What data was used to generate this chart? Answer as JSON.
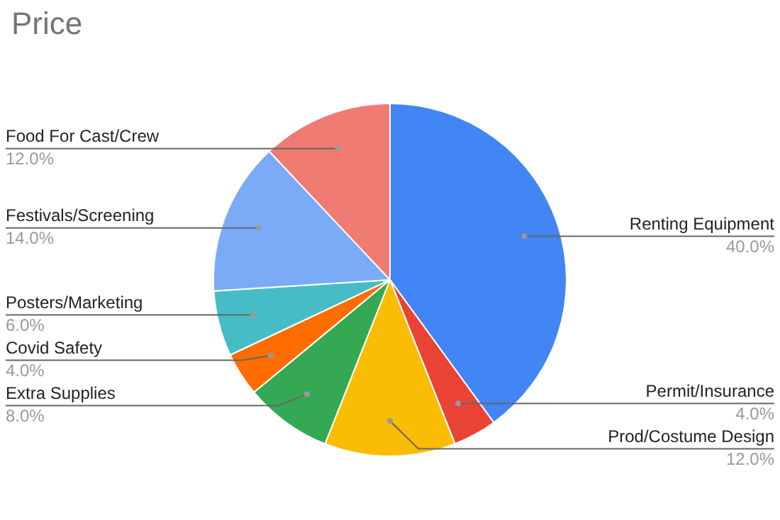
{
  "chart_data": {
    "type": "pie",
    "title": "Price",
    "categories": [
      "Renting Equipment",
      "Permit/Insurance",
      "Prod/Costume Design",
      "Extra Supplies",
      "Covid Safety",
      "Posters/Marketing",
      "Festivals/Screening",
      "Food For Cast/Crew"
    ],
    "values": [
      40,
      4,
      12,
      8,
      4,
      6,
      14,
      12
    ],
    "colors": [
      "#4285f4",
      "#ea4335",
      "#fbbc04",
      "#34a853",
      "#ff6d01",
      "#46bdc6",
      "#7baaf7",
      "#f07b72"
    ],
    "value_labels": [
      "40.0%",
      "4.0%",
      "12.0%",
      "8.0%",
      "4.0%",
      "6.0%",
      "14.0%",
      "12.0%"
    ],
    "legend": false
  }
}
